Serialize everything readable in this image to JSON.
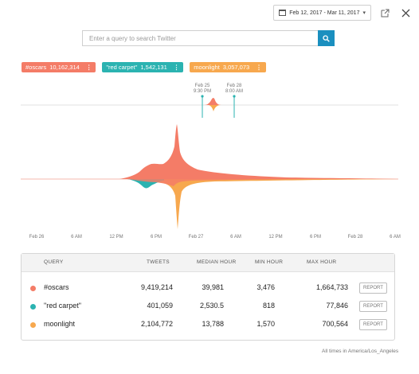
{
  "header": {
    "date_range": "Feb 12, 2017 - Mar 11, 2017",
    "date_icon": "calendar-icon",
    "dropdown_icon": "chevron-down-icon",
    "export_icon": "external-link-icon",
    "close_icon": "close-icon"
  },
  "search": {
    "placeholder": "Enter a query to search Twitter",
    "value": "",
    "button_icon": "search-icon"
  },
  "queries": [
    {
      "label": "#oscars",
      "count": "10,162,314",
      "color": "#f47c67"
    },
    {
      "label": "\"red carpet\"",
      "count": "1,542,131",
      "color": "#2bb3b1"
    },
    {
      "label": "moonlight",
      "count": "3,057,073",
      "color": "#f7a84e"
    }
  ],
  "chart_data": {
    "type": "area",
    "x_ticks": [
      "Feb 26",
      "6 AM",
      "12 PM",
      "6 PM",
      "Feb 27",
      "6 AM",
      "12 PM",
      "6 PM",
      "Feb 28",
      "6 AM"
    ],
    "zoom_markers": [
      {
        "date": "Feb 25",
        "time": "9:30 PM"
      },
      {
        "date": "Feb 28",
        "time": "8:00 AM"
      }
    ],
    "series": [
      {
        "name": "#oscars",
        "color": "#f47c67"
      },
      {
        "name": "\"red carpet\"",
        "color": "#2bb3b1"
      },
      {
        "name": "moonlight",
        "color": "#f7a84e"
      }
    ]
  },
  "table": {
    "headers": {
      "query": "QUERY",
      "tweets": "TWEETS",
      "median": "MEDIAN HOUR",
      "min": "MIN HOUR",
      "max": "MAX HOUR"
    },
    "rows": [
      {
        "query": "#oscars",
        "tweets": "9,419,214",
        "median": "39,981",
        "min": "3,476",
        "max": "1,664,733",
        "action": "REPORT",
        "color": "#f47c67"
      },
      {
        "query": "\"red carpet\"",
        "tweets": "401,059",
        "median": "2,530.5",
        "min": "818",
        "max": "77,846",
        "action": "REPORT",
        "color": "#2bb3b1"
      },
      {
        "query": "moonlight",
        "tweets": "2,104,772",
        "median": "13,788",
        "min": "1,570",
        "max": "700,564",
        "action": "REPORT",
        "color": "#f7a84e"
      }
    ]
  },
  "footer": {
    "timezone_note": "All times in America/Los_Angeles"
  }
}
